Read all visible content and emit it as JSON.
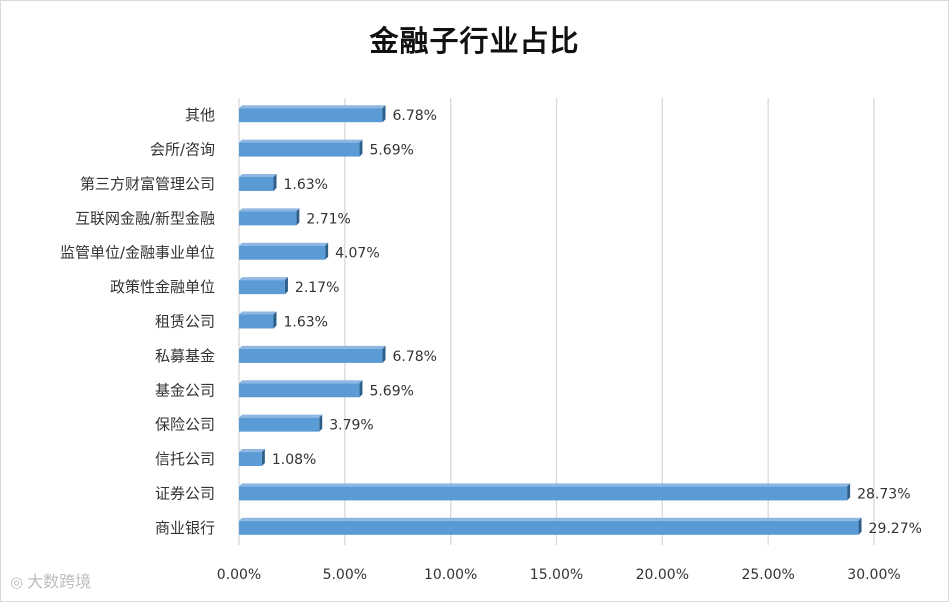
{
  "chart_data": {
    "type": "bar",
    "orientation": "horizontal",
    "title": "金融子行业占比",
    "categories": [
      "其他",
      "会所/咨询",
      "第三方财富管理公司",
      "互联网金融/新型金融",
      "监管单位/金融事业单位",
      "政策性金融单位",
      "租赁公司",
      "私募基金",
      "基金公司",
      "保险公司",
      "信托公司",
      "证券公司",
      "商业银行"
    ],
    "values": [
      6.78,
      5.69,
      1.63,
      2.71,
      4.07,
      2.17,
      1.63,
      6.78,
      5.69,
      3.79,
      1.08,
      28.73,
      29.27
    ],
    "value_labels": [
      "6.78%",
      "5.69%",
      "1.63%",
      "2.71%",
      "4.07%",
      "2.17%",
      "1.63%",
      "6.78%",
      "5.69%",
      "3.79%",
      "1.08%",
      "28.73%",
      "29.27%"
    ],
    "xlim": [
      0,
      30
    ],
    "x_ticks": [
      0,
      5,
      10,
      15,
      20,
      25,
      30
    ],
    "x_tick_labels": [
      "0.00%",
      "5.00%",
      "10.00%",
      "15.00%",
      "20.00%",
      "25.00%",
      "30.00%"
    ],
    "grid": "vertical",
    "bar_color": "#5b9bd5",
    "bar_side_color": "#2e5f8a",
    "grid_color": "#d9d9d9"
  },
  "watermark": {
    "text": "大数跨境",
    "icon": "weibo-icon"
  }
}
